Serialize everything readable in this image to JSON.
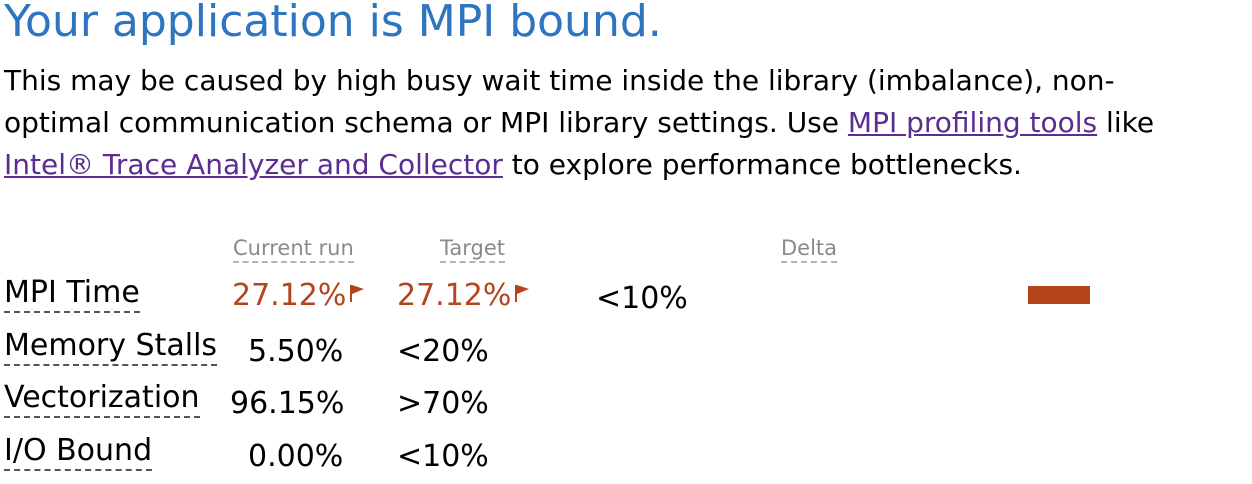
{
  "headline": "Your application is MPI bound.",
  "description": {
    "line1": "This may be caused by high busy wait time inside the library (imbalance), non-",
    "line2_prefix": "optimal communication schema or MPI library settings. Use ",
    "link_mpi_tools": "MPI profiling tools",
    "line2_suffix": " like",
    "link_itac": "Intel® Trace Analyzer and Collector",
    "line3_suffix": " to explore performance bottlenecks."
  },
  "table": {
    "headers": {
      "current": "Current run",
      "target": "Target",
      "delta": "Delta"
    },
    "rows": [
      {
        "label": "MPI Time",
        "current": "27.12%",
        "target": "27.12%",
        "target_threshold": "<10%",
        "flagged": true,
        "delta_fraction": 1.0
      },
      {
        "label": "Memory Stalls",
        "current": "5.50%",
        "target": "<20%",
        "flagged": false
      },
      {
        "label": "Vectorization",
        "current": "96.15%",
        "target": ">70%",
        "flagged": false
      },
      {
        "label": "I/O Bound",
        "current": "0.00%",
        "target": "<10%",
        "flagged": false
      }
    ]
  },
  "colors": {
    "headline": "#2e75c0",
    "link": "#5b2d91",
    "bad_value": "#b5441d",
    "delta_bar": "#b5441d"
  },
  "icons": {
    "flag": "flag-icon"
  }
}
